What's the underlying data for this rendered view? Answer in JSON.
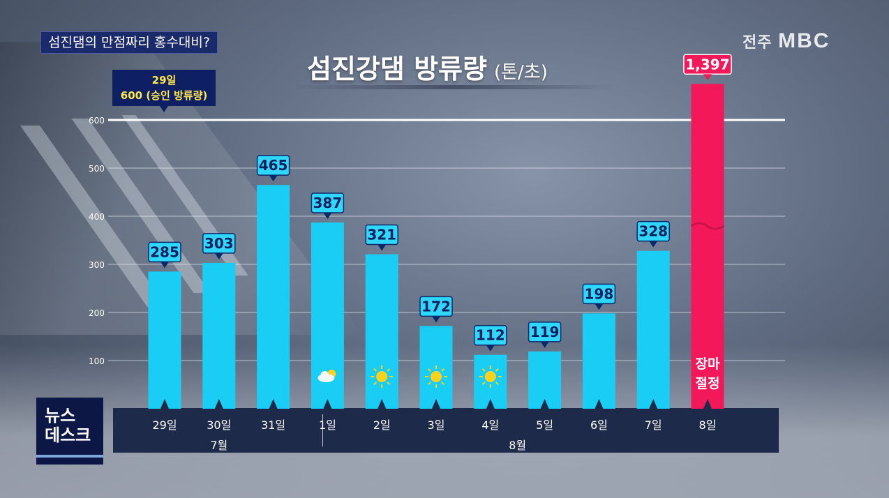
{
  "headline": "섬진댐의 만점짜리 홍수대비?",
  "logo": {
    "region": "전주",
    "brand": "MBC"
  },
  "news_box": {
    "line1": "뉴스",
    "line2": "데스크"
  },
  "chart_data": {
    "type": "bar",
    "title": "섬진강댐 방류량",
    "unit": "(톤/초)",
    "categories": [
      "29일",
      "30일",
      "31일",
      "1일",
      "2일",
      "3일",
      "4일",
      "5일",
      "6일",
      "7일",
      "8일"
    ],
    "values": [
      285,
      303,
      465,
      387,
      321,
      172,
      112,
      119,
      198,
      328,
      1397
    ],
    "value_labels": [
      "285",
      "303",
      "465",
      "387",
      "321",
      "172",
      "112",
      "119",
      "198",
      "328",
      "1,397"
    ],
    "months": [
      {
        "label": "7월",
        "span": [
          0,
          2
        ]
      },
      {
        "label": "8월",
        "span": [
          3,
          10
        ]
      }
    ],
    "ylim": [
      0,
      600
    ],
    "yticks": [
      100,
      200,
      300,
      400,
      500,
      600
    ],
    "yticks_label": [
      "100",
      "200",
      "300",
      "400",
      "500",
      "600"
    ],
    "reference_line": {
      "value": 600,
      "note_line1": "29일",
      "note_line2": "600 (승인 방류량)"
    },
    "highlight": {
      "index": 10,
      "color": "#f3185a",
      "text_line1": "장마",
      "text_line2": "절정",
      "axis_break": true
    },
    "bar_color": "#19cdf5",
    "weather_icons": [
      {
        "index": 3,
        "icon": "partly-cloudy-icon"
      },
      {
        "index": 4,
        "icon": "sun-icon"
      },
      {
        "index": 5,
        "icon": "sun-icon"
      },
      {
        "index": 6,
        "icon": "sun-icon"
      }
    ],
    "grid": true
  }
}
